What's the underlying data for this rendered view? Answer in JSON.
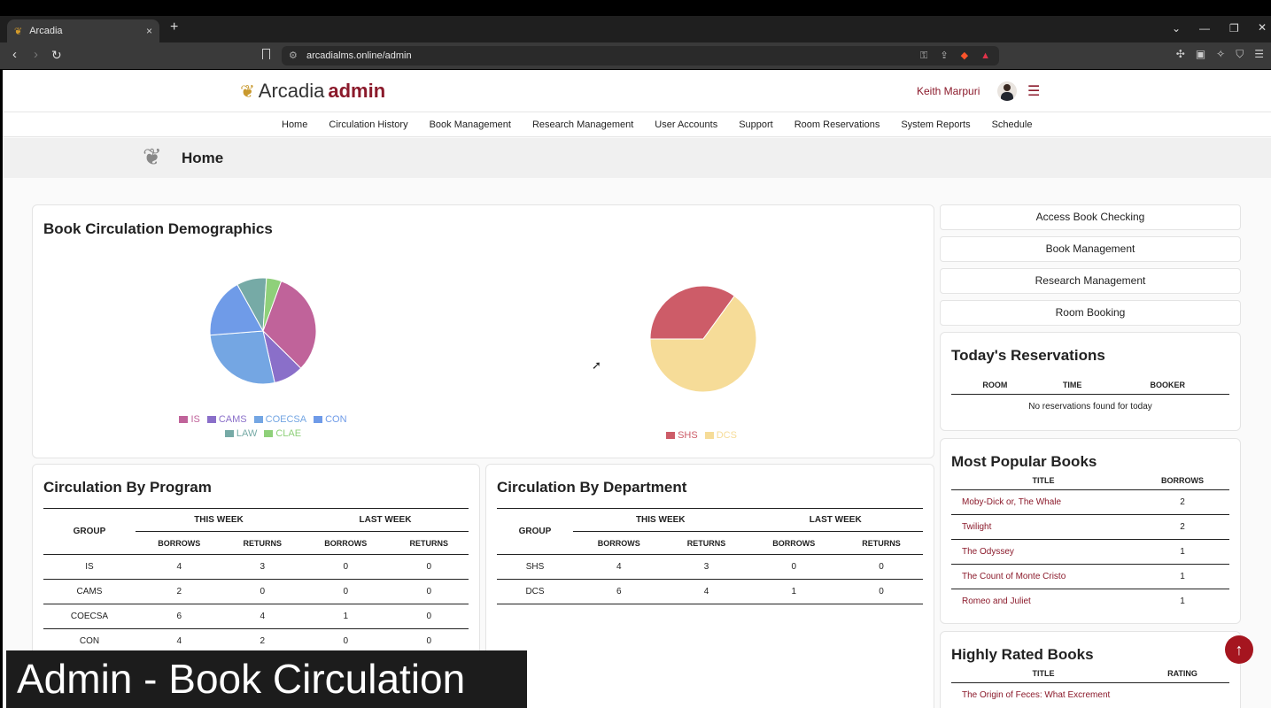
{
  "browser": {
    "tab_title": "Arcadia",
    "tab_close": "×",
    "new_tab": "+",
    "url": "arcadialms.online/admin"
  },
  "header": {
    "brand": "Arcadia",
    "brand_suffix": "admin",
    "user_name": "Keith Marpuri"
  },
  "nav": [
    "Home",
    "Circulation History",
    "Book Management",
    "Research Management",
    "User Accounts",
    "Support",
    "Room Reservations",
    "System Reports",
    "Schedule"
  ],
  "page_title": "Home",
  "demographics": {
    "title": "Book Circulation Demographics",
    "chart_data": [
      {
        "type": "pie",
        "categories": [
          "IS",
          "CAMS",
          "COECSA",
          "CON",
          "LAW",
          "CLAE"
        ],
        "values": [
          7,
          2,
          6,
          4,
          2,
          1
        ],
        "colors": [
          "#c0639a",
          "#8a6fc9",
          "#74a6e3",
          "#6f9be8",
          "#76aaa6",
          "#8fd07a"
        ]
      },
      {
        "type": "pie",
        "categories": [
          "SHS",
          "DCS"
        ],
        "values": [
          7,
          13
        ],
        "colors": [
          "#cd5c68",
          "#f6dc98"
        ]
      }
    ]
  },
  "program": {
    "title": "Circulation By Program",
    "group_label": "GROUP",
    "this_week": "THIS WEEK",
    "last_week": "LAST WEEK",
    "borrows": "BORROWS",
    "returns": "RETURNS",
    "rows": [
      [
        "IS",
        "4",
        "3",
        "0",
        "0"
      ],
      [
        "CAMS",
        "2",
        "0",
        "0",
        "0"
      ],
      [
        "COECSA",
        "6",
        "4",
        "1",
        "0"
      ],
      [
        "CON",
        "4",
        "2",
        "0",
        "0"
      ]
    ]
  },
  "department": {
    "title": "Circulation By Department",
    "group_label": "GROUP",
    "this_week": "THIS WEEK",
    "last_week": "LAST WEEK",
    "borrows": "BORROWS",
    "returns": "RETURNS",
    "rows": [
      [
        "SHS",
        "4",
        "3",
        "0",
        "0"
      ],
      [
        "DCS",
        "6",
        "4",
        "1",
        "0"
      ]
    ]
  },
  "quick_links": [
    "Access Book Checking",
    "Book Management",
    "Research Management",
    "Room Booking"
  ],
  "reservations": {
    "title": "Today's Reservations",
    "columns": [
      "ROOM",
      "TIME",
      "BOOKER"
    ],
    "empty": "No reservations found for today"
  },
  "popular": {
    "title": "Most Popular Books",
    "columns": [
      "TITLE",
      "BORROWS"
    ],
    "rows": [
      [
        "Moby-Dick or, The Whale",
        "2"
      ],
      [
        "Twilight",
        "2"
      ],
      [
        "The Odyssey",
        "1"
      ],
      [
        "The Count of Monte Cristo",
        "1"
      ],
      [
        "Romeo and Juliet",
        "1"
      ]
    ]
  },
  "rated": {
    "title": "Highly Rated Books",
    "columns": [
      "TITLE",
      "RATING"
    ],
    "rows": [
      [
        "The Origin of Feces: What Excrement",
        ""
      ]
    ]
  },
  "caption": "Admin - Book Circulation"
}
